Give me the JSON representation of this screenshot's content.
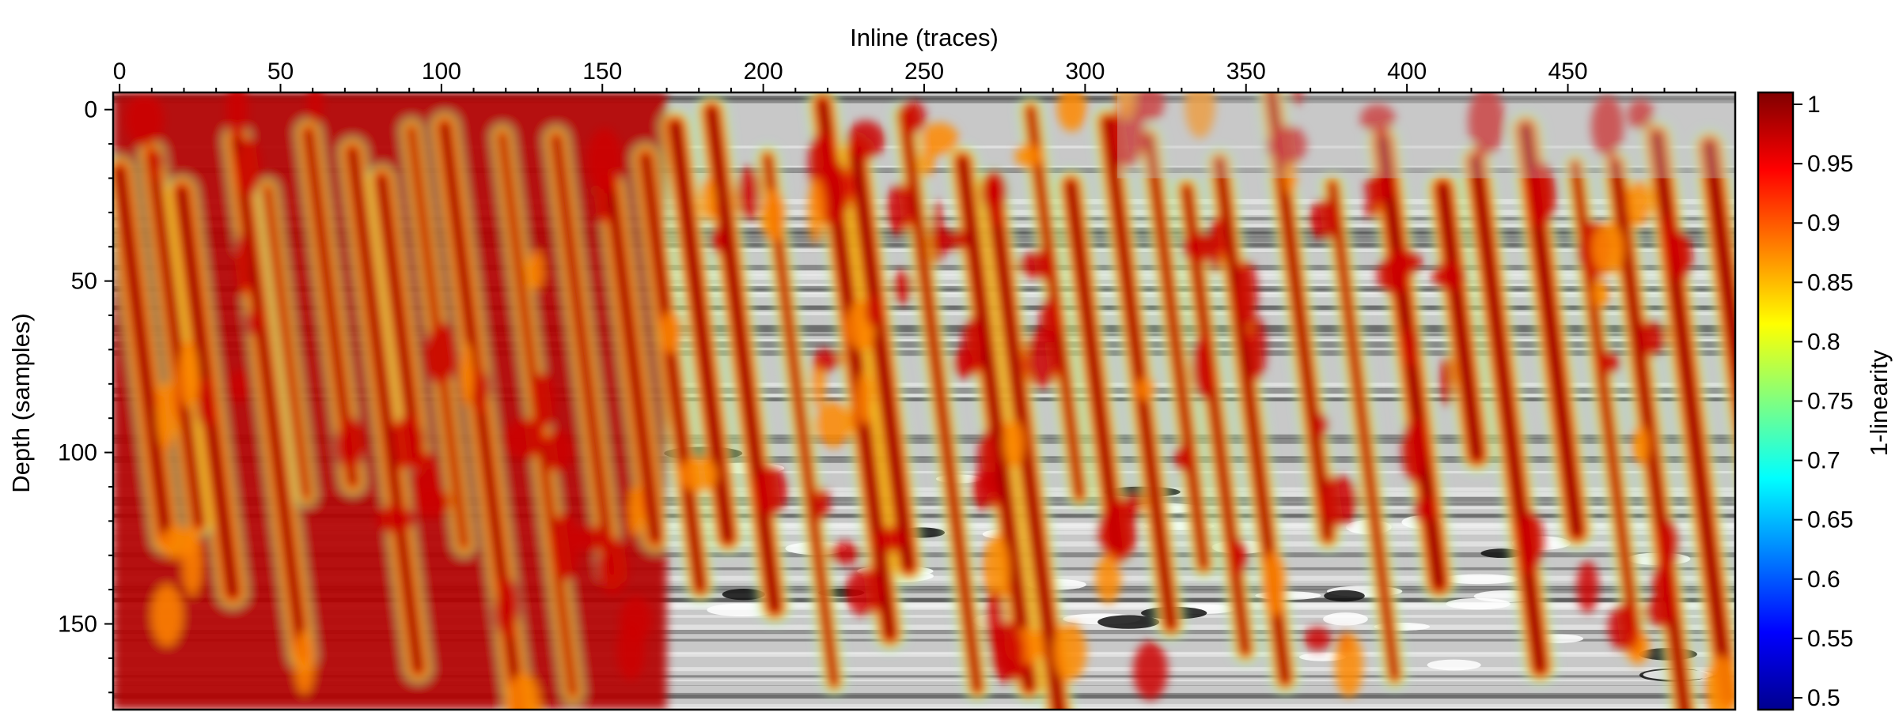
{
  "chart_data": {
    "type": "heatmap",
    "title": "",
    "xlabel": "Inline (traces)",
    "ylabel": "Depth (samples)",
    "colorbar_label": "1-linearity",
    "x_axis_position": "top",
    "y_axis_inverted": true,
    "xlim": [
      -2,
      502
    ],
    "ylim": [
      -5,
      175
    ],
    "x_ticks": [
      0,
      50,
      100,
      150,
      200,
      250,
      300,
      350,
      400,
      450
    ],
    "y_ticks": [
      0,
      50,
      100,
      150
    ],
    "colorbar_range": [
      0.49,
      1.01
    ],
    "colorbar_ticks": [
      1,
      0.95,
      0.9,
      0.85,
      0.8,
      0.75,
      0.7,
      0.65,
      0.6,
      0.55,
      0.5
    ],
    "colormap": "jet",
    "background": "grayscale seismic amplitude section",
    "grid": false
  }
}
